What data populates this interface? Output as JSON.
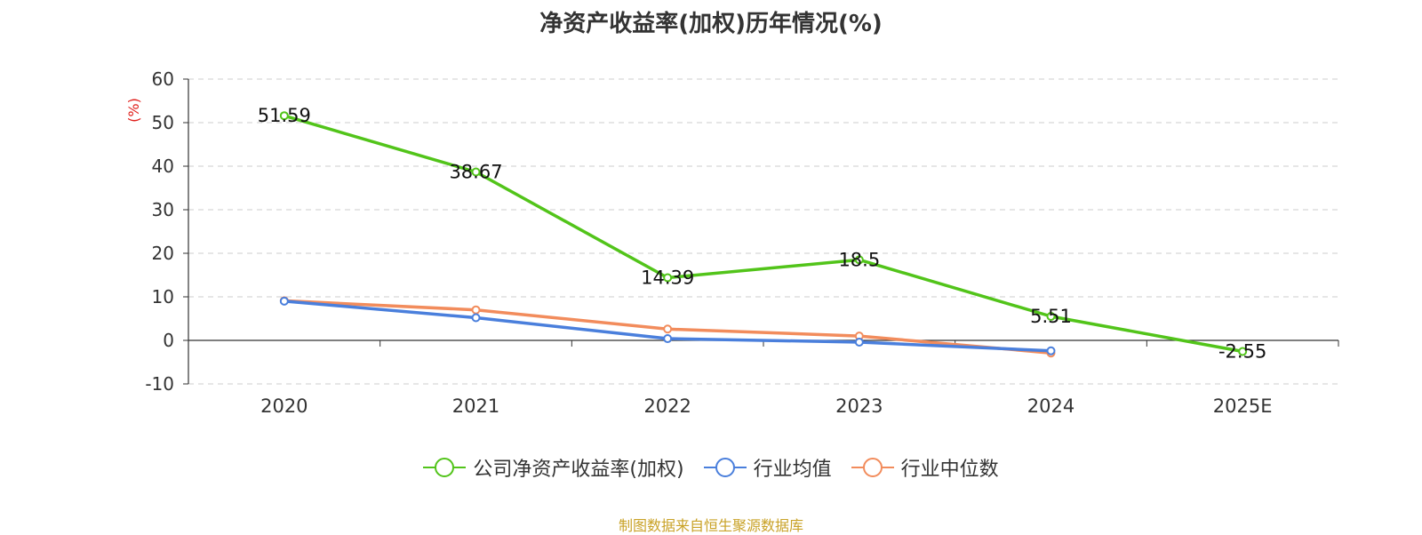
{
  "chart_data": {
    "type": "line",
    "title": "净资产收益率(加权)历年情况(%)",
    "ylabel": "(%)",
    "xlabel": "",
    "categories": [
      "2020",
      "2021",
      "2022",
      "2023",
      "2024",
      "2025E"
    ],
    "ylim": [
      -10,
      60
    ],
    "yticks": [
      -10,
      0,
      10,
      20,
      30,
      40,
      50,
      60
    ],
    "grid": true,
    "legend_position": "bottom",
    "series": [
      {
        "name": "公司净资产收益率(加权)",
        "color": "#52c41a",
        "values": [
          51.59,
          38.67,
          14.39,
          18.5,
          5.51,
          -2.55
        ],
        "labels": [
          "51.59",
          "38.67",
          "14.39",
          "18.5",
          "5.51",
          "-2.55"
        ]
      },
      {
        "name": "行业均值",
        "color": "#4a7fdc",
        "values": [
          9.0,
          5.2,
          0.4,
          -0.4,
          -2.4,
          null
        ]
      },
      {
        "name": "行业中位数",
        "color": "#f28c5c",
        "values": [
          9.1,
          7.0,
          2.6,
          1.0,
          -2.9,
          null
        ]
      }
    ]
  },
  "source_note": "制图数据来自恒生聚源数据库"
}
